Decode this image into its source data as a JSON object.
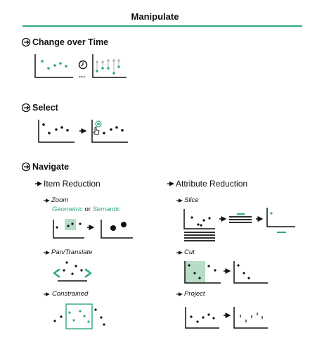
{
  "title": "Manipulate",
  "sections": {
    "change": {
      "label": "Change over Time",
      "ellipsis": "..."
    },
    "select": {
      "label": "Select"
    },
    "navigate": {
      "label": "Navigate"
    }
  },
  "item_reduction": {
    "label": "Item Reduction",
    "zoom": {
      "label": "Zoom",
      "geometric": "Geometric",
      "or": "or",
      "semantic": "Semantic"
    },
    "pan": {
      "label": "Pan/Translate"
    },
    "constrained": {
      "label": "Constrained"
    }
  },
  "attribute_reduction": {
    "label": "Attribute Reduction",
    "slice": {
      "label": "Slice"
    },
    "cut": {
      "label": "Cut"
    },
    "project": {
      "label": "Project"
    }
  },
  "colors": {
    "accent": "#2ea87e",
    "highlight_fill": "#b7dcc8",
    "muted": "#b3b3b3"
  }
}
